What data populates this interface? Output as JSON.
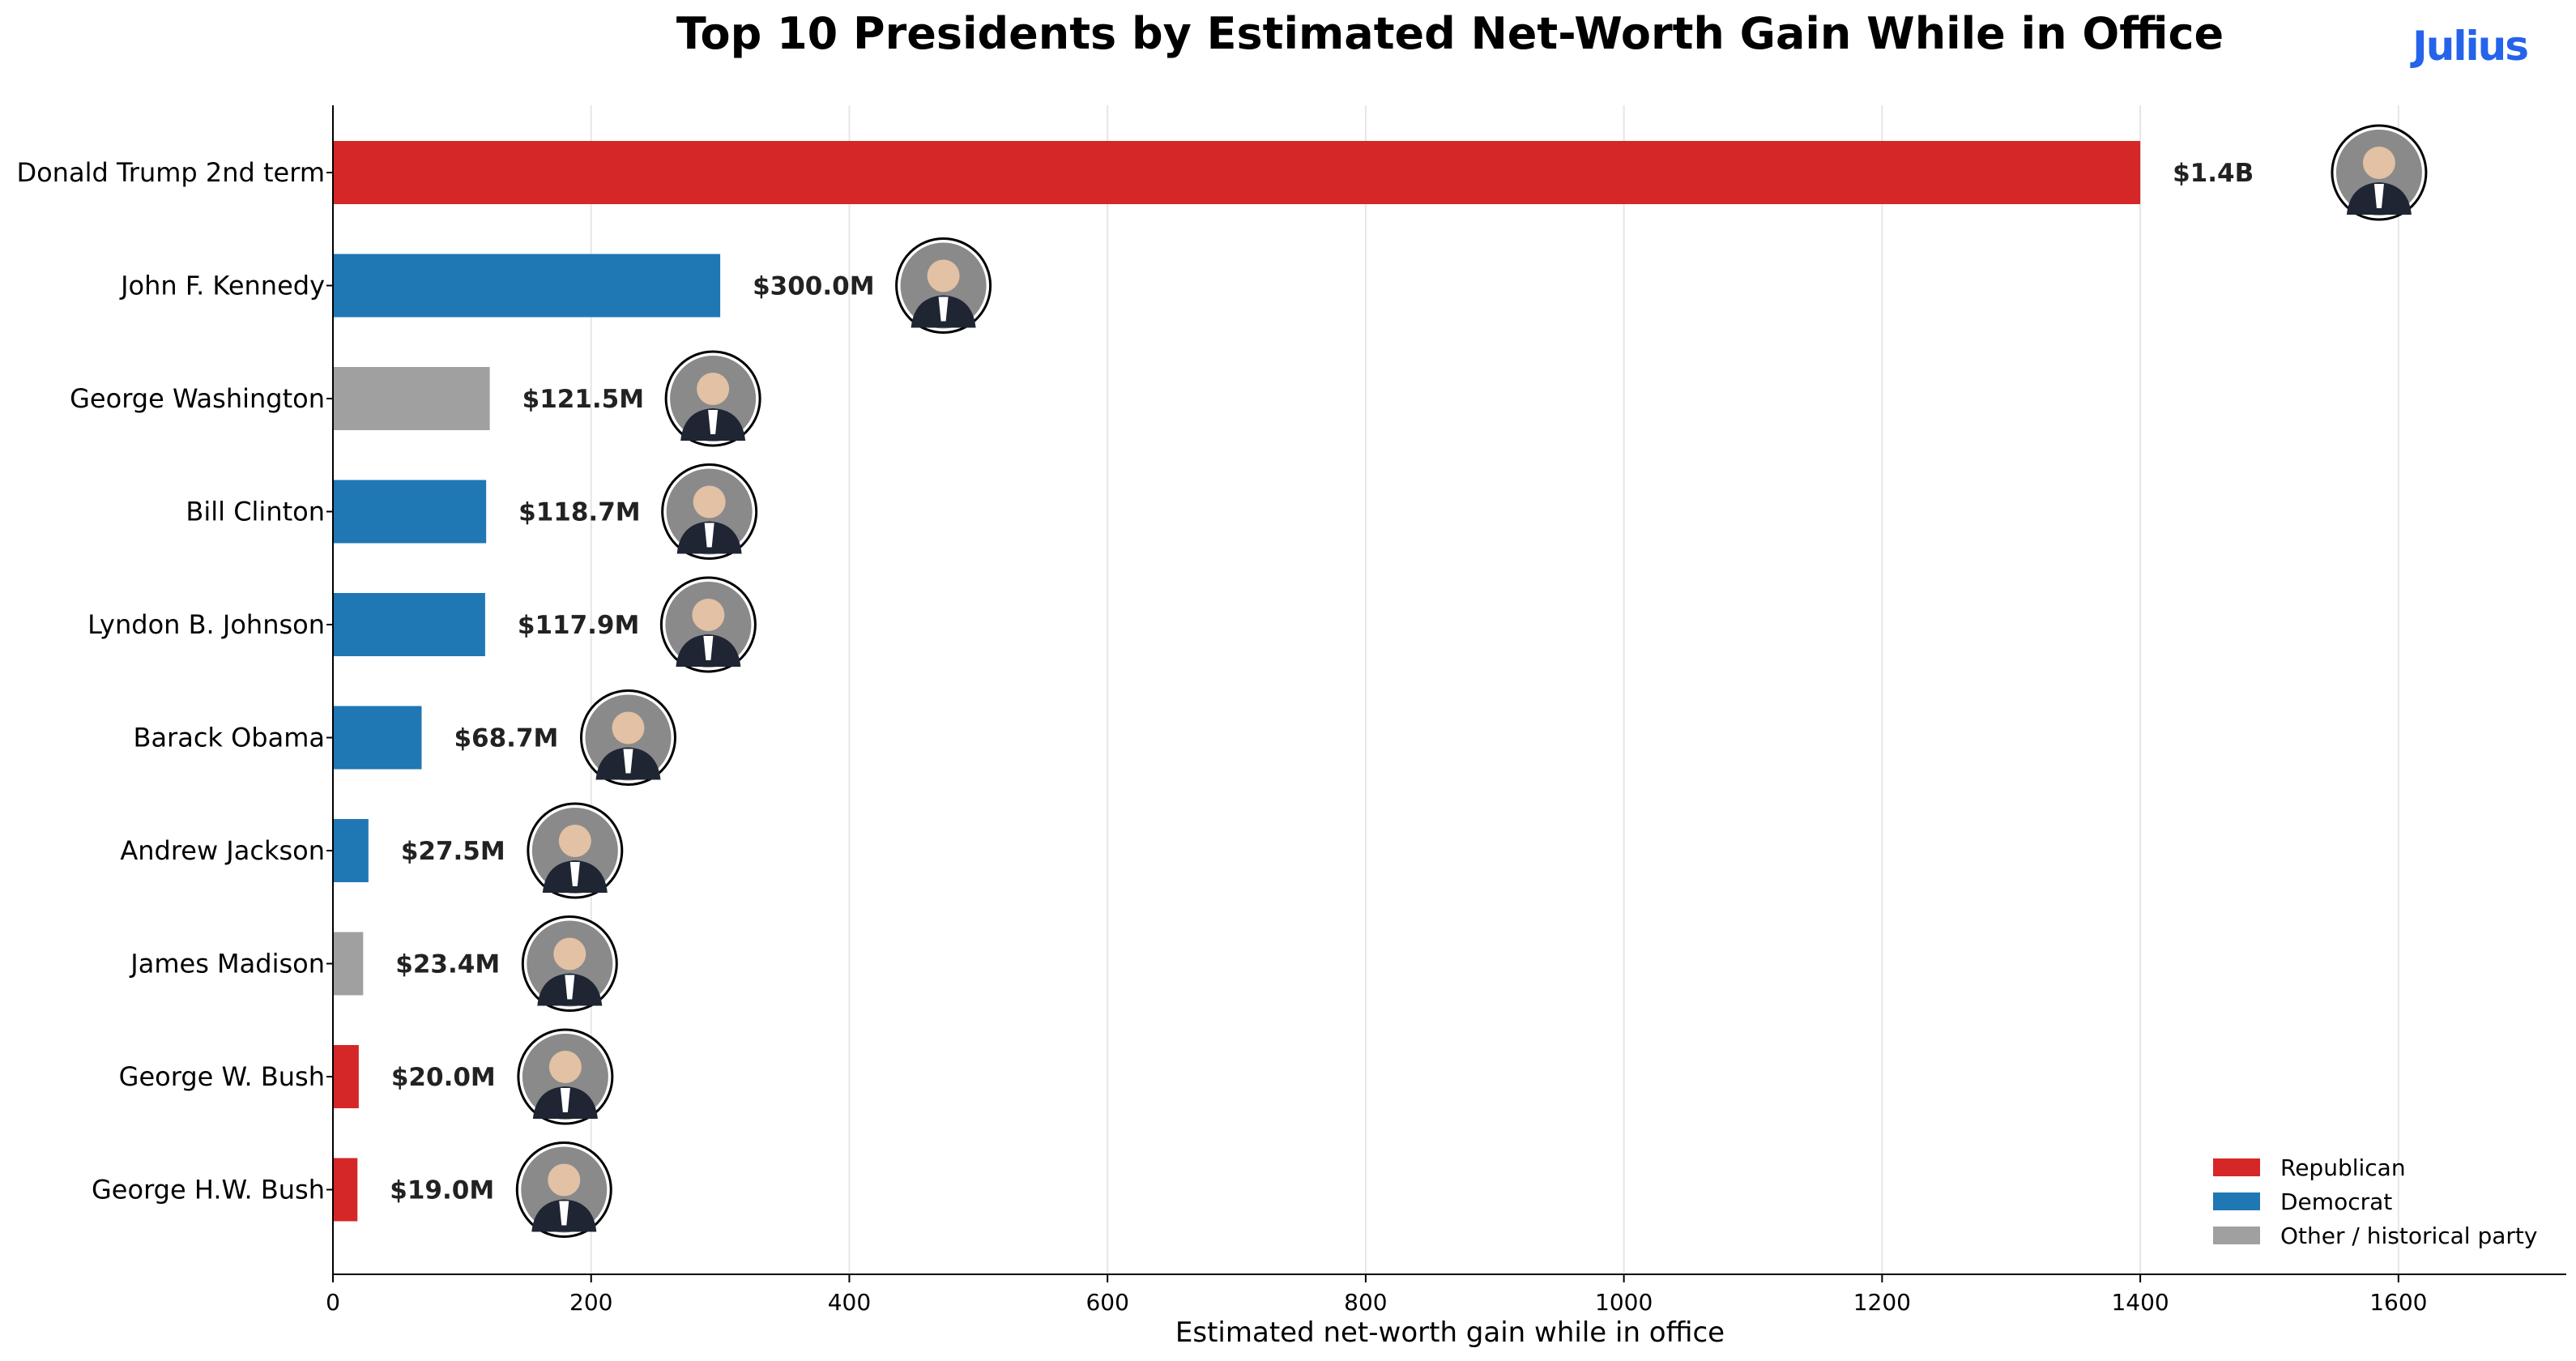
{
  "colors": {
    "Republican": "#d62728",
    "Democrat": "#1f77b4",
    "Other / historical party": "#a0a0a0",
    "brand": "#2563eb",
    "grid": "#e6e6e6"
  },
  "brand": "Julius",
  "chart_data": {
    "type": "bar",
    "orientation": "horizontal",
    "title": "Top 10 Presidents by Estimated Net-Worth Gain While in Office",
    "xlabel": "Estimated net-worth gain while in office",
    "ylabel": "",
    "xlim": [
      0,
      1730
    ],
    "xticks": [
      0,
      200,
      400,
      600,
      800,
      1000,
      1200,
      1400,
      1600
    ],
    "grid": "x",
    "legend_position": "lower-right",
    "legend": [
      "Republican",
      "Democrat",
      "Other / historical party"
    ],
    "categories": [
      "Donald Trump 2nd term",
      "John F. Kennedy",
      "George Washington",
      "Bill Clinton",
      "Lyndon B. Johnson",
      "Barack Obama",
      "Andrew Jackson",
      "James Madison",
      "George W. Bush",
      "George H.W. Bush"
    ],
    "values": [
      1400,
      300.0,
      121.5,
      118.7,
      117.9,
      68.7,
      27.5,
      23.4,
      20.0,
      19.0
    ],
    "labels": [
      "$1.4B",
      "$300.0M",
      "$121.5M",
      "$118.7M",
      "$117.9M",
      "$68.7M",
      "$27.5M",
      "$23.4M",
      "$20.0M",
      "$19.0M"
    ],
    "party": [
      "Republican",
      "Democrat",
      "Other / historical party",
      "Democrat",
      "Democrat",
      "Democrat",
      "Democrat",
      "Other / historical party",
      "Republican",
      "Republican"
    ]
  }
}
